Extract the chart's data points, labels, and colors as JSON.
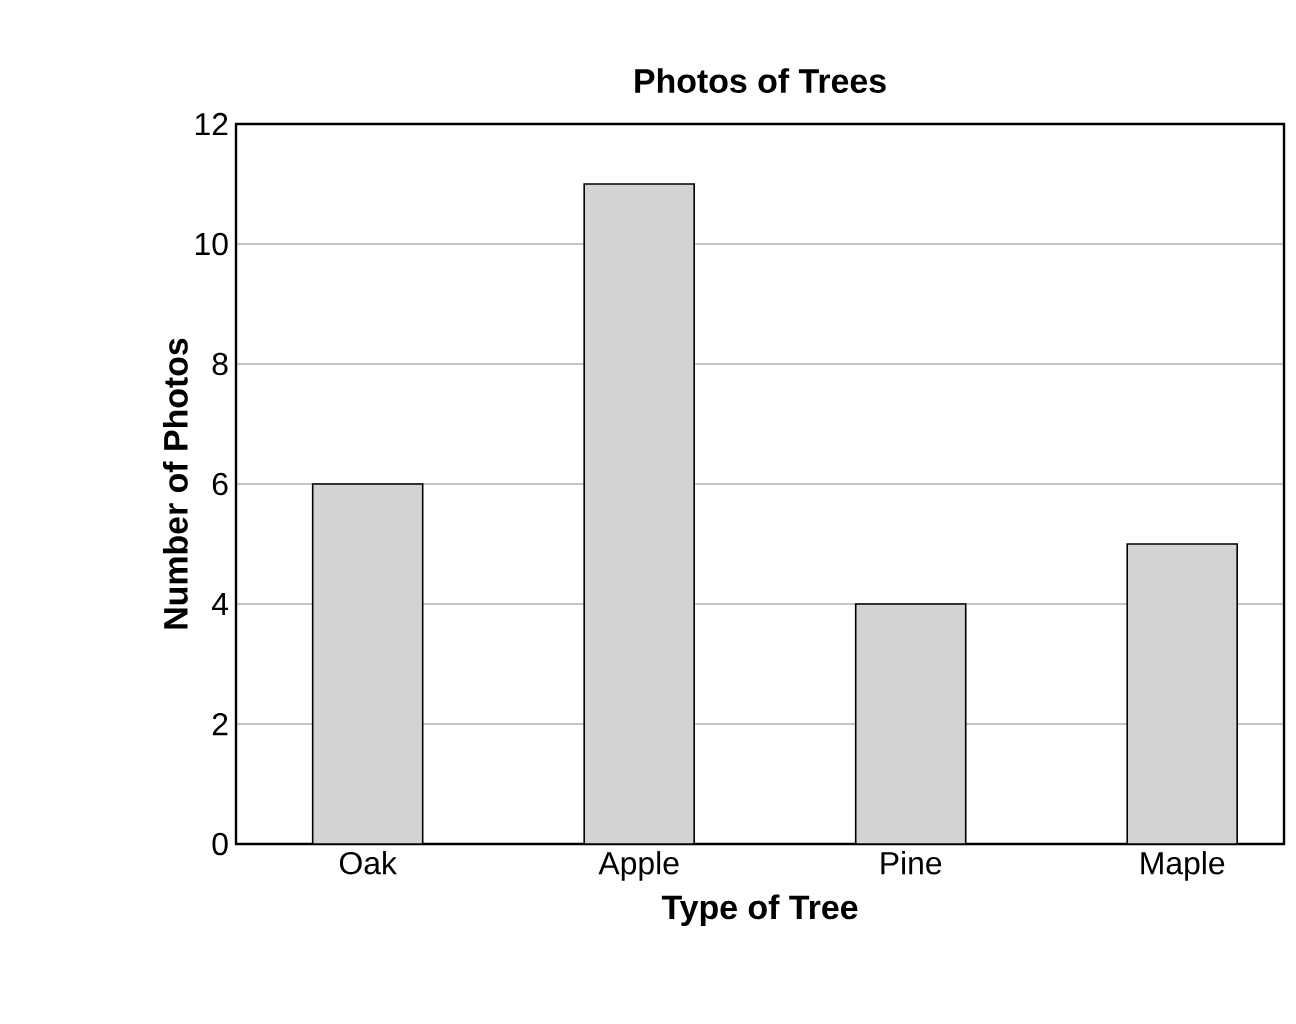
{
  "chart_data": {
    "type": "bar",
    "title": "Photos of Trees",
    "xlabel": "Type of Tree",
    "ylabel": "Number of Photos",
    "categories": [
      "Oak",
      "Apple",
      "Pine",
      "Maple"
    ],
    "values": [
      6,
      11,
      4,
      5
    ],
    "color": "#d3d3d5",
    "ylim": [
      0,
      12
    ],
    "yticks": [
      0,
      2,
      4,
      6,
      8,
      10,
      12
    ],
    "grid": "y"
  }
}
